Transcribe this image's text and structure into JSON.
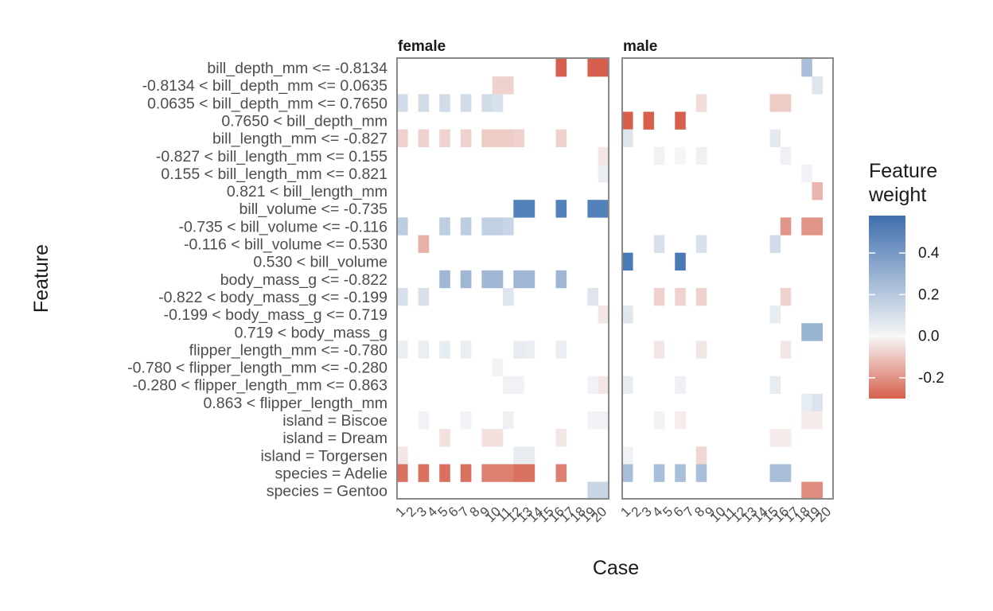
{
  "chart_data": {
    "type": "heatmap",
    "title": "",
    "xlabel": "Case",
    "ylabel": "Feature",
    "legend": {
      "title": "Feature\nweight",
      "ticks": [
        "0.4",
        "0.2",
        "0.0",
        "-0.2"
      ],
      "tick_values": [
        0.4,
        0.2,
        0.0,
        -0.2
      ],
      "range": [
        -0.3,
        0.58
      ],
      "placement": "right"
    },
    "colors": {
      "negative": "#d6604d",
      "zero": "#f7f7f7",
      "positive": "#4a7ab5",
      "frame": "#8a8a8a"
    },
    "features": [
      "bill_depth_mm <= -0.8134",
      "-0.8134 < bill_depth_mm <= 0.0635",
      "0.0635 < bill_depth_mm <= 0.7650",
      "0.7650 < bill_depth_mm",
      "bill_length_mm <= -0.827",
      "-0.827 < bill_length_mm <= 0.155",
      "0.155 < bill_length_mm <= 0.821",
      "0.821 < bill_length_mm",
      "bill_volume <= -0.735",
      "-0.735 < bill_volume <= -0.116",
      "-0.116 < bill_volume <= 0.530",
      "0.530 < bill_volume",
      "body_mass_g <= -0.822",
      "-0.822 < body_mass_g <= -0.199",
      "-0.199 < body_mass_g <= 0.719",
      "0.719 < body_mass_g",
      "flipper_length_mm <= -0.780",
      "-0.780 < flipper_length_mm <= -0.280",
      "-0.280 < flipper_length_mm <= 0.863",
      "0.863 < flipper_length_mm",
      "island = Biscoe",
      "island = Dream",
      "island = Torgersen",
      "species = Adelie",
      "species = Gentoo"
    ],
    "cases": [
      "1",
      "2",
      "3",
      "4",
      "5",
      "6",
      "7",
      "8",
      "9",
      "10",
      "11",
      "12",
      "13",
      "14",
      "15",
      "16",
      "17",
      "18",
      "19",
      "20"
    ],
    "panels": [
      {
        "name": "female",
        "cells": [
          {
            "c": "16",
            "f": 0,
            "v": -0.28
          },
          {
            "c": "19",
            "f": 0,
            "v": -0.28
          },
          {
            "c": "20",
            "f": 0,
            "v": -0.28
          },
          {
            "c": "10",
            "f": 1,
            "v": -0.07
          },
          {
            "c": "11",
            "f": 1,
            "v": -0.07
          },
          {
            "c": "1",
            "f": 2,
            "v": 0.12
          },
          {
            "c": "3",
            "f": 2,
            "v": 0.12
          },
          {
            "c": "5",
            "f": 2,
            "v": 0.12
          },
          {
            "c": "7",
            "f": 2,
            "v": 0.12
          },
          {
            "c": "9",
            "f": 2,
            "v": 0.12
          },
          {
            "c": "10",
            "f": 2,
            "v": 0.1
          },
          {
            "c": "1",
            "f": 4,
            "v": -0.07
          },
          {
            "c": "3",
            "f": 4,
            "v": -0.07
          },
          {
            "c": "5",
            "f": 4,
            "v": -0.07
          },
          {
            "c": "7",
            "f": 4,
            "v": -0.07
          },
          {
            "c": "9",
            "f": 4,
            "v": -0.08
          },
          {
            "c": "10",
            "f": 4,
            "v": -0.08
          },
          {
            "c": "11",
            "f": 4,
            "v": -0.08
          },
          {
            "c": "12",
            "f": 4,
            "v": -0.07
          },
          {
            "c": "16",
            "f": 4,
            "v": -0.07
          },
          {
            "c": "20",
            "f": 5,
            "v": -0.03
          },
          {
            "c": "20",
            "f": 6,
            "v": 0.04
          },
          {
            "c": "12",
            "f": 8,
            "v": 0.52
          },
          {
            "c": "13",
            "f": 8,
            "v": 0.52
          },
          {
            "c": "16",
            "f": 8,
            "v": 0.52
          },
          {
            "c": "19",
            "f": 8,
            "v": 0.52
          },
          {
            "c": "20",
            "f": 8,
            "v": 0.52
          },
          {
            "c": "1",
            "f": 9,
            "v": 0.18
          },
          {
            "c": "5",
            "f": 9,
            "v": 0.18
          },
          {
            "c": "7",
            "f": 9,
            "v": 0.18
          },
          {
            "c": "9",
            "f": 9,
            "v": 0.17
          },
          {
            "c": "10",
            "f": 9,
            "v": 0.17
          },
          {
            "c": "11",
            "f": 9,
            "v": 0.15
          },
          {
            "c": "3",
            "f": 10,
            "v": -0.13
          },
          {
            "c": "5",
            "f": 12,
            "v": 0.28
          },
          {
            "c": "7",
            "f": 12,
            "v": 0.28
          },
          {
            "c": "9",
            "f": 12,
            "v": 0.28
          },
          {
            "c": "10",
            "f": 12,
            "v": 0.28
          },
          {
            "c": "12",
            "f": 12,
            "v": 0.28
          },
          {
            "c": "13",
            "f": 12,
            "v": 0.28
          },
          {
            "c": "16",
            "f": 12,
            "v": 0.28
          },
          {
            "c": "1",
            "f": 13,
            "v": 0.1
          },
          {
            "c": "3",
            "f": 13,
            "v": 0.1
          },
          {
            "c": "11",
            "f": 13,
            "v": 0.08
          },
          {
            "c": "19",
            "f": 13,
            "v": 0.08
          },
          {
            "c": "20",
            "f": 14,
            "v": -0.03
          },
          {
            "c": "1",
            "f": 16,
            "v": 0.04
          },
          {
            "c": "3",
            "f": 16,
            "v": 0.04
          },
          {
            "c": "5",
            "f": 16,
            "v": 0.05
          },
          {
            "c": "7",
            "f": 16,
            "v": 0.04
          },
          {
            "c": "12",
            "f": 16,
            "v": 0.05
          },
          {
            "c": "13",
            "f": 16,
            "v": 0.04
          },
          {
            "c": "16",
            "f": 16,
            "v": 0.04
          },
          {
            "c": "10",
            "f": 17,
            "v": 0.02
          },
          {
            "c": "11",
            "f": 18,
            "v": 0.02
          },
          {
            "c": "12",
            "f": 18,
            "v": 0.02
          },
          {
            "c": "19",
            "f": 18,
            "v": 0.02
          },
          {
            "c": "20",
            "f": 18,
            "v": -0.03
          },
          {
            "c": "3",
            "f": 20,
            "v": 0.02
          },
          {
            "c": "7",
            "f": 20,
            "v": 0.02
          },
          {
            "c": "11",
            "f": 20,
            "v": 0.03
          },
          {
            "c": "19",
            "f": 20,
            "v": 0.02
          },
          {
            "c": "20",
            "f": 20,
            "v": 0.02
          },
          {
            "c": "5",
            "f": 21,
            "v": -0.04
          },
          {
            "c": "9",
            "f": 21,
            "v": -0.04
          },
          {
            "c": "10",
            "f": 21,
            "v": -0.04
          },
          {
            "c": "16",
            "f": 21,
            "v": -0.03
          },
          {
            "c": "1",
            "f": 22,
            "v": -0.03
          },
          {
            "c": "12",
            "f": 22,
            "v": 0.05
          },
          {
            "c": "13",
            "f": 22,
            "v": 0.05
          },
          {
            "c": "1",
            "f": 23,
            "v": -0.25
          },
          {
            "c": "3",
            "f": 23,
            "v": -0.25
          },
          {
            "c": "5",
            "f": 23,
            "v": -0.25
          },
          {
            "c": "7",
            "f": 23,
            "v": -0.25
          },
          {
            "c": "9",
            "f": 23,
            "v": -0.22
          },
          {
            "c": "10",
            "f": 23,
            "v": -0.22
          },
          {
            "c": "11",
            "f": 23,
            "v": -0.22
          },
          {
            "c": "12",
            "f": 23,
            "v": -0.25
          },
          {
            "c": "13",
            "f": 23,
            "v": -0.25
          },
          {
            "c": "16",
            "f": 23,
            "v": -0.22
          },
          {
            "c": "19",
            "f": 24,
            "v": 0.15
          },
          {
            "c": "20",
            "f": 24,
            "v": 0.15
          }
        ]
      },
      {
        "name": "male",
        "cells": [
          {
            "c": "18",
            "f": 0,
            "v": 0.25
          },
          {
            "c": "19",
            "f": 1,
            "v": 0.08
          },
          {
            "c": "8",
            "f": 2,
            "v": -0.05
          },
          {
            "c": "15",
            "f": 2,
            "v": -0.08
          },
          {
            "c": "16",
            "f": 2,
            "v": -0.08
          },
          {
            "c": "1",
            "f": 3,
            "v": -0.28
          },
          {
            "c": "3",
            "f": 3,
            "v": -0.28
          },
          {
            "c": "6",
            "f": 3,
            "v": -0.28
          },
          {
            "c": "1",
            "f": 4,
            "v": 0.08
          },
          {
            "c": "15",
            "f": 4,
            "v": 0.06
          },
          {
            "c": "4",
            "f": 5,
            "v": 0.02
          },
          {
            "c": "6",
            "f": 5,
            "v": 0.01
          },
          {
            "c": "8",
            "f": 5,
            "v": 0.03
          },
          {
            "c": "16",
            "f": 5,
            "v": 0.03
          },
          {
            "c": "18",
            "f": 6,
            "v": 0.02
          },
          {
            "c": "19",
            "f": 7,
            "v": -0.12
          },
          {
            "c": "16",
            "f": 9,
            "v": -0.18
          },
          {
            "c": "18",
            "f": 9,
            "v": -0.18
          },
          {
            "c": "19",
            "f": 9,
            "v": -0.18
          },
          {
            "c": "4",
            "f": 10,
            "v": 0.1
          },
          {
            "c": "8",
            "f": 10,
            "v": 0.1
          },
          {
            "c": "15",
            "f": 10,
            "v": 0.12
          },
          {
            "c": "1",
            "f": 11,
            "v": 0.55
          },
          {
            "c": "6",
            "f": 11,
            "v": 0.55
          },
          {
            "c": "4",
            "f": 13,
            "v": -0.07
          },
          {
            "c": "6",
            "f": 13,
            "v": -0.07
          },
          {
            "c": "8",
            "f": 13,
            "v": -0.07
          },
          {
            "c": "16",
            "f": 13,
            "v": -0.07
          },
          {
            "c": "1",
            "f": 14,
            "v": 0.07
          },
          {
            "c": "15",
            "f": 14,
            "v": 0.05
          },
          {
            "c": "18",
            "f": 15,
            "v": 0.3
          },
          {
            "c": "19",
            "f": 15,
            "v": 0.3
          },
          {
            "c": "4",
            "f": 16,
            "v": -0.03
          },
          {
            "c": "8",
            "f": 16,
            "v": -0.03
          },
          {
            "c": "16",
            "f": 16,
            "v": -0.03
          },
          {
            "c": "1",
            "f": 18,
            "v": 0.05
          },
          {
            "c": "6",
            "f": 18,
            "v": 0.03
          },
          {
            "c": "15",
            "f": 18,
            "v": 0.05
          },
          {
            "c": "18",
            "f": 19,
            "v": 0.05
          },
          {
            "c": "19",
            "f": 19,
            "v": 0.09
          },
          {
            "c": "4",
            "f": 20,
            "v": 0.02
          },
          {
            "c": "6",
            "f": 20,
            "v": -0.02
          },
          {
            "c": "18",
            "f": 20,
            "v": -0.02
          },
          {
            "c": "19",
            "f": 20,
            "v": -0.02
          },
          {
            "c": "15",
            "f": 21,
            "v": -0.02
          },
          {
            "c": "16",
            "f": 21,
            "v": -0.02
          },
          {
            "c": "1",
            "f": 22,
            "v": 0.02
          },
          {
            "c": "8",
            "f": 22,
            "v": -0.06
          },
          {
            "c": "1",
            "f": 23,
            "v": 0.25
          },
          {
            "c": "4",
            "f": 23,
            "v": 0.25
          },
          {
            "c": "6",
            "f": 23,
            "v": 0.25
          },
          {
            "c": "8",
            "f": 23,
            "v": 0.25
          },
          {
            "c": "15",
            "f": 23,
            "v": 0.25
          },
          {
            "c": "16",
            "f": 23,
            "v": 0.25
          },
          {
            "c": "18",
            "f": 24,
            "v": -0.2
          },
          {
            "c": "19",
            "f": 24,
            "v": -0.2
          }
        ]
      }
    ]
  }
}
